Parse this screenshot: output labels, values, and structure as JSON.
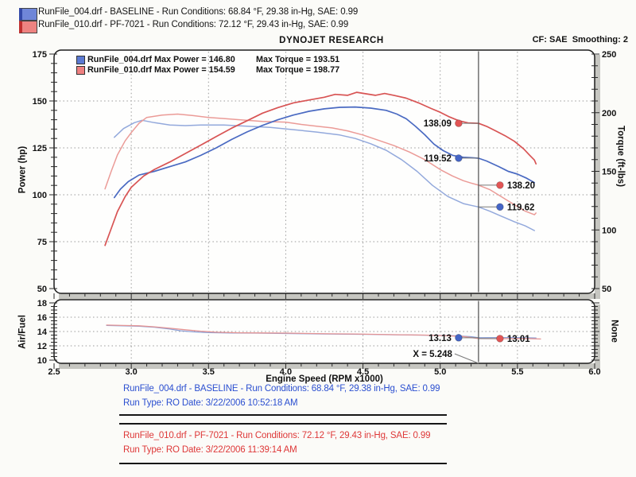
{
  "colors": {
    "blue_text": "#2b4fd0",
    "red_text": "#de3838",
    "blue_swatch": "#6f86d8",
    "red_swatch": "#ee8381",
    "blue_dot": "#4565c6",
    "red_dot": "#e25555"
  },
  "header": {
    "title": "DYNOJET RESEARCH",
    "cf": "CF: SAE",
    "smoothing": "Smoothing: 2",
    "runs": [
      {
        "line": "RunFile_004.drf - BASELINE  -  Run Conditions: 68.84 °F, 29.38 in-Hg, SAE: 0.99"
      },
      {
        "line": "RunFile_010.drf - PF-7021  -  Run Conditions: 72.12 °F, 29.43 in-Hg, SAE: 0.99"
      }
    ]
  },
  "legend_box": {
    "rows": [
      {
        "power_text": "RunFile_004.drf Max Power = 146.80",
        "torque_text": "Max Torque = 193.51",
        "color": "#5b79d2"
      },
      {
        "power_text": "RunFile_010.drf Max Power = 154.59",
        "torque_text": "Max Torque = 198.77",
        "color": "#ee8080"
      }
    ]
  },
  "footer": {
    "runs": [
      {
        "line1": "RunFile_004.drf - BASELINE  -  Run Conditions: 68.84 °F, 29.38 in-Hg, SAE: 0.99",
        "line2": "Run Type: RO  Date: 3/22/2006 10:52:18 AM",
        "color": "#2b4fd0"
      },
      {
        "line1": "RunFile_010.drf - PF-7021  -  Run Conditions: 72.12 °F, 29.43 in-Hg, SAE: 0.99",
        "line2": "Run Type: RO  Date: 3/22/2006 11:39:14 AM",
        "color": "#de3838"
      }
    ]
  },
  "chart_data": [
    {
      "type": "line",
      "title": "DYNOJET RESEARCH",
      "x_axis": {
        "min": 2.5,
        "max": 6.0,
        "major_ticks": [
          2.5,
          3.0,
          3.5,
          4.0,
          4.5,
          5.0,
          5.5,
          6.0
        ],
        "tick_labels": [
          "2.5",
          "3.0",
          "3.5",
          "4.0",
          "4.5",
          "5.0",
          "5.5",
          "6.0"
        ],
        "minor_step": 0.1,
        "grid": [
          3.0,
          3.5,
          4.0,
          4.5,
          5.0,
          5.5
        ],
        "show_labels": false
      },
      "axes": {
        "left": {
          "label": "Power (hp)",
          "min": 50,
          "max": 175,
          "major_ticks": [
            175,
            150,
            125,
            100,
            75,
            50
          ],
          "minor_step": 5,
          "grid": [
            150,
            125,
            100,
            75
          ]
        },
        "right": {
          "label": "Torque (ft-lbs)",
          "min": 50,
          "max": 250,
          "major_ticks": [
            250,
            200,
            150,
            100,
            50
          ],
          "minor_step": 10
        }
      },
      "cursor_x": 5.248,
      "series": [
        {
          "name": "torque-runfile-004",
          "axis": "right",
          "color": "#93a9dc",
          "width": 1.5,
          "points": [
            [
              2.89,
              179
            ],
            [
              2.95,
              186.5
            ],
            [
              3.02,
              191.5
            ],
            [
              3.07,
              193.5
            ],
            [
              3.15,
              191.5
            ],
            [
              3.25,
              189.5
            ],
            [
              3.35,
              189
            ],
            [
              3.45,
              189.5
            ],
            [
              3.6,
              189.5
            ],
            [
              3.75,
              188.5
            ],
            [
              3.9,
              187.5
            ],
            [
              4.05,
              185.5
            ],
            [
              4.2,
              183.5
            ],
            [
              4.35,
              181
            ],
            [
              4.45,
              178
            ],
            [
              4.55,
              173.5
            ],
            [
              4.65,
              168
            ],
            [
              4.75,
              160
            ],
            [
              4.85,
              150
            ],
            [
              4.95,
              138
            ],
            [
              5.05,
              128.5
            ],
            [
              5.15,
              122.5
            ],
            [
              5.2,
              121
            ],
            [
              5.248,
              119.6
            ],
            [
              5.32,
              116
            ],
            [
              5.4,
              111.5
            ],
            [
              5.48,
              107
            ],
            [
              5.55,
              103.5
            ],
            [
              5.61,
              99.5
            ]
          ]
        },
        {
          "name": "torque-runfile-010",
          "axis": "right",
          "color": "#eb9b97",
          "width": 1.5,
          "points": [
            [
              2.83,
              135
            ],
            [
              2.87,
              150
            ],
            [
              2.91,
              164
            ],
            [
              2.96,
              176
            ],
            [
              3.0,
              183
            ],
            [
              3.05,
              191
            ],
            [
              3.1,
              196
            ],
            [
              3.2,
              198
            ],
            [
              3.3,
              198.8
            ],
            [
              3.4,
              197.5
            ],
            [
              3.5,
              196
            ],
            [
              3.6,
              195
            ],
            [
              3.7,
              194
            ],
            [
              3.85,
              192.5
            ],
            [
              4.0,
              192
            ],
            [
              4.1,
              190
            ],
            [
              4.2,
              188.5
            ],
            [
              4.3,
              187
            ],
            [
              4.4,
              184.5
            ],
            [
              4.5,
              181
            ],
            [
              4.6,
              176.5
            ],
            [
              4.7,
              172
            ],
            [
              4.8,
              166.5
            ],
            [
              4.9,
              160
            ],
            [
              5.0,
              151.5
            ],
            [
              5.08,
              146
            ],
            [
              5.15,
              142
            ],
            [
              5.2,
              140
            ],
            [
              5.248,
              138.2
            ],
            [
              5.32,
              134.5
            ],
            [
              5.4,
              128
            ],
            [
              5.48,
              121.5
            ],
            [
              5.55,
              116
            ],
            [
              5.61,
              113
            ],
            [
              5.62,
              114.5
            ]
          ]
        },
        {
          "name": "power-runfile-004",
          "axis": "left",
          "color": "#4a6ac2",
          "width": 1.7,
          "points": [
            [
              2.89,
              98.5
            ],
            [
              2.93,
              103
            ],
            [
              2.98,
              107
            ],
            [
              3.05,
              110.5
            ],
            [
              3.15,
              112.5
            ],
            [
              3.25,
              115
            ],
            [
              3.35,
              117.5
            ],
            [
              3.45,
              121
            ],
            [
              3.55,
              125
            ],
            [
              3.65,
              129.5
            ],
            [
              3.75,
              133.5
            ],
            [
              3.85,
              137
            ],
            [
              3.95,
              140
            ],
            [
              4.05,
              142.5
            ],
            [
              4.15,
              144.5
            ],
            [
              4.25,
              145.8
            ],
            [
              4.35,
              146.6
            ],
            [
              4.45,
              146.8
            ],
            [
              4.55,
              146.2
            ],
            [
              4.65,
              145
            ],
            [
              4.72,
              143
            ],
            [
              4.78,
              140.5
            ],
            [
              4.84,
              136.5
            ],
            [
              4.9,
              132
            ],
            [
              4.96,
              127
            ],
            [
              5.02,
              123.5
            ],
            [
              5.08,
              121
            ],
            [
              5.15,
              120
            ],
            [
              5.2,
              119.8
            ],
            [
              5.248,
              119.5
            ],
            [
              5.3,
              118
            ],
            [
              5.38,
              115
            ],
            [
              5.44,
              112.5
            ],
            [
              5.5,
              111
            ],
            [
              5.56,
              108.8
            ],
            [
              5.61,
              106.5
            ]
          ]
        },
        {
          "name": "power-runfile-010",
          "axis": "left",
          "color": "#d85454",
          "width": 1.7,
          "points": [
            [
              2.83,
              73
            ],
            [
              2.87,
              82
            ],
            [
              2.91,
              91
            ],
            [
              2.96,
              99
            ],
            [
              3.0,
              104
            ],
            [
              3.08,
              110
            ],
            [
              3.15,
              113.5
            ],
            [
              3.25,
              117.5
            ],
            [
              3.35,
              122
            ],
            [
              3.45,
              126.5
            ],
            [
              3.55,
              131
            ],
            [
              3.65,
              135.5
            ],
            [
              3.75,
              139.5
            ],
            [
              3.85,
              143.5
            ],
            [
              3.95,
              146.5
            ],
            [
              4.05,
              149
            ],
            [
              4.15,
              150.5
            ],
            [
              4.25,
              152
            ],
            [
              4.32,
              153.5
            ],
            [
              4.4,
              153
            ],
            [
              4.46,
              154.6
            ],
            [
              4.52,
              153.8
            ],
            [
              4.58,
              153
            ],
            [
              4.64,
              154
            ],
            [
              4.7,
              153
            ],
            [
              4.78,
              151.5
            ],
            [
              4.86,
              149
            ],
            [
              4.94,
              146
            ],
            [
              5.0,
              144
            ],
            [
              5.06,
              141.5
            ],
            [
              5.12,
              139.5
            ],
            [
              5.18,
              138.3
            ],
            [
              5.248,
              138.1
            ],
            [
              5.3,
              136.5
            ],
            [
              5.36,
              134
            ],
            [
              5.42,
              131.5
            ],
            [
              5.48,
              128.5
            ],
            [
              5.54,
              124.5
            ],
            [
              5.58,
              121
            ],
            [
              5.61,
              118.5
            ],
            [
              5.62,
              116.5
            ]
          ]
        }
      ],
      "markers": [
        {
          "label": "138.09",
          "value": 138.09,
          "axis": "left",
          "color": "#e25555",
          "side": "left"
        },
        {
          "label": "119.52",
          "value": 119.52,
          "axis": "left",
          "color": "#4565c6",
          "side": "left"
        },
        {
          "label": "138.20",
          "value": 138.2,
          "axis": "right",
          "color": "#e25555",
          "side": "right"
        },
        {
          "label": "119.62",
          "value": 119.62,
          "axis": "right",
          "color": "#4565c6",
          "side": "right"
        }
      ],
      "max_values": {
        "runfile_004": {
          "max_power": 146.8,
          "max_torque": 193.51
        },
        "runfile_010": {
          "max_power": 154.59,
          "max_torque": 198.77
        }
      }
    },
    {
      "type": "line",
      "x_axis": {
        "label": "Engine Speed (RPM x1000)",
        "min": 2.5,
        "max": 6.0,
        "major_ticks": [
          2.5,
          3.0,
          3.5,
          4.0,
          4.5,
          5.0,
          5.5,
          6.0
        ],
        "tick_labels": [
          "2.5",
          "3.0",
          "3.5",
          "4.0",
          "4.5",
          "5.0",
          "5.5",
          "6.0"
        ],
        "minor_step": 0.1,
        "grid": [
          3.0,
          3.5,
          4.0,
          4.5,
          5.0,
          5.5
        ],
        "show_labels": true
      },
      "axes": {
        "left": {
          "label": "Air/Fuel",
          "min": 10,
          "max": 18,
          "major_ticks": [
            18,
            16,
            14,
            12,
            10
          ],
          "minor_step": 0.5,
          "grid": [
            16,
            14,
            12
          ]
        },
        "right": {
          "label": "None"
        }
      },
      "cursor_x": 5.248,
      "cursor_label": "X = 5.248",
      "series": [
        {
          "name": "afr-runfile-004",
          "axis": "left",
          "color": "#8ba0d6",
          "width": 1.3,
          "points": [
            [
              2.84,
              14.85
            ],
            [
              2.95,
              14.8
            ],
            [
              3.05,
              14.75
            ],
            [
              3.15,
              14.6
            ],
            [
              3.25,
              14.35
            ],
            [
              3.32,
              14.1
            ],
            [
              3.4,
              13.95
            ],
            [
              3.5,
              13.85
            ],
            [
              3.65,
              13.8
            ],
            [
              3.8,
              13.78
            ],
            [
              3.95,
              13.75
            ],
            [
              4.1,
              13.7
            ],
            [
              4.25,
              13.65
            ],
            [
              4.4,
              13.62
            ],
            [
              4.55,
              13.6
            ],
            [
              4.7,
              13.55
            ],
            [
              4.85,
              13.5
            ],
            [
              5.0,
              13.45
            ],
            [
              5.1,
              13.4
            ],
            [
              5.2,
              13.28
            ],
            [
              5.248,
              13.13
            ],
            [
              5.35,
              13.15
            ],
            [
              5.5,
              13.15
            ],
            [
              5.62,
              13.1
            ]
          ]
        },
        {
          "name": "afr-runfile-010",
          "axis": "left",
          "color": "#e59494",
          "width": 1.3,
          "points": [
            [
              2.84,
              14.9
            ],
            [
              2.95,
              14.85
            ],
            [
              3.05,
              14.8
            ],
            [
              3.15,
              14.65
            ],
            [
              3.25,
              14.45
            ],
            [
              3.35,
              14.25
            ],
            [
              3.45,
              14.05
            ],
            [
              3.55,
              13.9
            ],
            [
              3.7,
              13.82
            ],
            [
              3.85,
              13.8
            ],
            [
              4.0,
              13.78
            ],
            [
              4.15,
              13.72
            ],
            [
              4.3,
              13.68
            ],
            [
              4.45,
              13.65
            ],
            [
              4.6,
              13.6
            ],
            [
              4.75,
              13.55
            ],
            [
              4.9,
              13.5
            ],
            [
              5.05,
              13.4
            ],
            [
              5.15,
              13.3
            ],
            [
              5.248,
              13.01
            ],
            [
              5.4,
              13.0
            ],
            [
              5.55,
              13.02
            ],
            [
              5.65,
              12.95
            ]
          ]
        }
      ],
      "markers": [
        {
          "label": "13.13",
          "value": 13.13,
          "axis": "left",
          "color": "#4565c6",
          "side": "left"
        },
        {
          "label": "13.01",
          "value": 13.01,
          "axis": "left",
          "color": "#e25555",
          "side": "right"
        }
      ]
    }
  ]
}
